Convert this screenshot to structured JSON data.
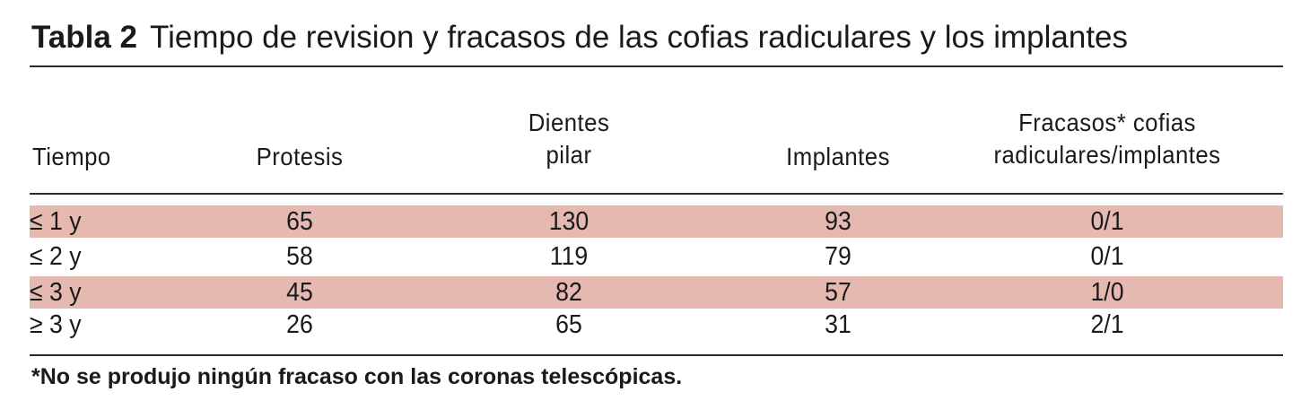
{
  "table": {
    "number": "Tabla 2",
    "title": "Tiempo de revision y fracasos de las cofias radiculares y los implantes",
    "headers": {
      "tiempo": "Tiempo",
      "protesis": "Protesis",
      "dientes_line1": "Dientes",
      "dientes_line2": "pilar",
      "implantes": "Implantes",
      "fracasos_line1": "Fracasos* cofias",
      "fracasos_line2": "radiculares/implantes"
    },
    "rows": [
      {
        "tiempo": "≤ 1 y",
        "protesis": "65",
        "dientes_pilar": "130",
        "implantes": "93",
        "fracasos": "0/1"
      },
      {
        "tiempo": "≤ 2 y",
        "protesis": "58",
        "dientes_pilar": "119",
        "implantes": "79",
        "fracasos": "0/1"
      },
      {
        "tiempo": "≤ 3 y",
        "protesis": "45",
        "dientes_pilar": "82",
        "implantes": "57",
        "fracasos": "1/0"
      },
      {
        "tiempo": "≥ 3 y",
        "protesis": "26",
        "dientes_pilar": "65",
        "implantes": "31",
        "fracasos": "2/1"
      }
    ],
    "footnote": "*No se produjo ningún fracaso con las coronas telescópicas.",
    "colors": {
      "row_shade": "#e6b9b0",
      "rule": "#2a2a2a",
      "text": "#1a1a1a"
    }
  }
}
